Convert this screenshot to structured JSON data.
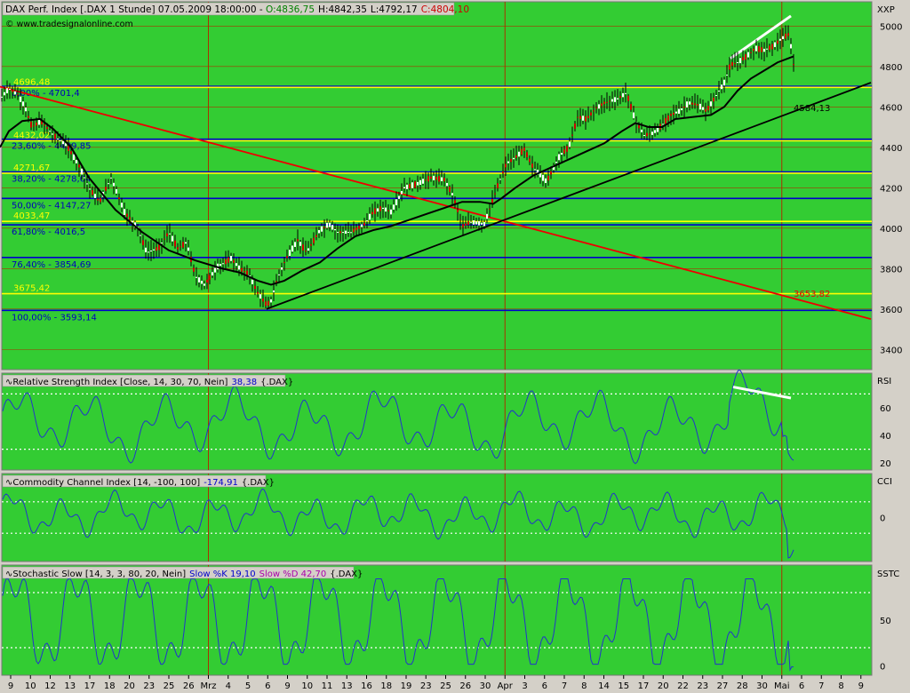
{
  "header": {
    "label": "DAX Perf. Index [.DAX  1 Stunde] 07.05.2009 18:00:00 - ",
    "open": "O:4836,75",
    "high": "H:4842,35",
    "low": "L:4792,17",
    "close": "C:4804,10",
    "copyright": "© www.tradesignalonline.com"
  },
  "colors": {
    "plot_bg": "#33cc33",
    "frame_bg": "#d4d0c8",
    "price": "#000000",
    "indicator": "#2233cc",
    "fib": "#0000cc",
    "support": "#ffff00",
    "trend_down": "#ee0000",
    "vgrid": "#aa3300",
    "close_text": "#cc0000",
    "open_text": "#008000"
  },
  "chart_data": [
    {
      "type": "candlestick",
      "axis_title": "XXP",
      "ylim": [
        3300,
        5120
      ],
      "yticks": [
        3400,
        3600,
        3800,
        4000,
        4200,
        4400,
        4600,
        4800,
        5000
      ],
      "xticks": [
        "9",
        "10",
        "12",
        "13",
        "17",
        "18",
        "20",
        "23",
        "25",
        "26",
        "Mrz",
        "4",
        "5",
        "6",
        "9",
        "10",
        "11",
        "13",
        "16",
        "18",
        "19",
        "23",
        "25",
        "26",
        "30",
        "Apr",
        "3",
        "6",
        "7",
        "8",
        "14",
        "15",
        "17",
        "20",
        "22",
        "23",
        "27",
        "28",
        "30",
        "Mai",
        "6",
        "7",
        "8",
        "9"
      ],
      "month_markers": [
        "Mrz",
        "Apr",
        "Mai"
      ],
      "moving_average": [
        [
          0,
          4400
        ],
        [
          10,
          4480
        ],
        [
          25,
          4530
        ],
        [
          45,
          4540
        ],
        [
          60,
          4490
        ],
        [
          80,
          4400
        ],
        [
          100,
          4250
        ],
        [
          130,
          4090
        ],
        [
          160,
          3980
        ],
        [
          190,
          3890
        ],
        [
          220,
          3840
        ],
        [
          250,
          3800
        ],
        [
          270,
          3780
        ],
        [
          290,
          3740
        ],
        [
          305,
          3720
        ],
        [
          320,
          3740
        ],
        [
          340,
          3790
        ],
        [
          360,
          3830
        ],
        [
          380,
          3900
        ],
        [
          400,
          3960
        ],
        [
          420,
          3990
        ],
        [
          440,
          4010
        ],
        [
          460,
          4040
        ],
        [
          480,
          4070
        ],
        [
          500,
          4100
        ],
        [
          520,
          4130
        ],
        [
          540,
          4130
        ],
        [
          555,
          4120
        ],
        [
          565,
          4150
        ],
        [
          580,
          4200
        ],
        [
          600,
          4260
        ],
        [
          620,
          4300
        ],
        [
          640,
          4340
        ],
        [
          660,
          4380
        ],
        [
          680,
          4420
        ],
        [
          700,
          4480
        ],
        [
          715,
          4520
        ],
        [
          730,
          4500
        ],
        [
          745,
          4500
        ],
        [
          760,
          4540
        ],
        [
          780,
          4550
        ],
        [
          800,
          4560
        ],
        [
          815,
          4600
        ],
        [
          830,
          4680
        ],
        [
          845,
          4740
        ],
        [
          860,
          4780
        ],
        [
          875,
          4820
        ],
        [
          893,
          4850
        ]
      ],
      "price_path": [
        [
          0,
          4640
        ],
        [
          10,
          4690
        ],
        [
          20,
          4660
        ],
        [
          28,
          4600
        ],
        [
          36,
          4500
        ],
        [
          46,
          4530
        ],
        [
          60,
          4460
        ],
        [
          75,
          4410
        ],
        [
          90,
          4300
        ],
        [
          100,
          4200
        ],
        [
          112,
          4130
        ],
        [
          125,
          4250
        ],
        [
          140,
          4080
        ],
        [
          155,
          4000
        ],
        [
          165,
          3880
        ],
        [
          178,
          3900
        ],
        [
          190,
          3980
        ],
        [
          200,
          3900
        ],
        [
          210,
          3930
        ],
        [
          220,
          3760
        ],
        [
          230,
          3720
        ],
        [
          245,
          3810
        ],
        [
          260,
          3850
        ],
        [
          270,
          3800
        ],
        [
          280,
          3770
        ],
        [
          290,
          3680
        ],
        [
          300,
          3620
        ],
        [
          305,
          3640
        ],
        [
          312,
          3750
        ],
        [
          322,
          3850
        ],
        [
          335,
          3940
        ],
        [
          345,
          3880
        ],
        [
          360,
          3990
        ],
        [
          370,
          4020
        ],
        [
          380,
          3980
        ],
        [
          395,
          3980
        ],
        [
          410,
          4020
        ],
        [
          420,
          4080
        ],
        [
          430,
          4100
        ],
        [
          440,
          4080
        ],
        [
          455,
          4200
        ],
        [
          470,
          4220
        ],
        [
          485,
          4250
        ],
        [
          500,
          4240
        ],
        [
          510,
          4160
        ],
        [
          520,
          4010
        ],
        [
          530,
          4030
        ],
        [
          545,
          4020
        ],
        [
          560,
          4210
        ],
        [
          570,
          4320
        ],
        [
          580,
          4350
        ],
        [
          590,
          4390
        ],
        [
          600,
          4300
        ],
        [
          615,
          4230
        ],
        [
          630,
          4360
        ],
        [
          640,
          4400
        ],
        [
          650,
          4550
        ],
        [
          660,
          4540
        ],
        [
          670,
          4590
        ],
        [
          680,
          4620
        ],
        [
          695,
          4640
        ],
        [
          705,
          4670
        ],
        [
          715,
          4530
        ],
        [
          725,
          4460
        ],
        [
          735,
          4470
        ],
        [
          745,
          4510
        ],
        [
          755,
          4560
        ],
        [
          765,
          4580
        ],
        [
          775,
          4620
        ],
        [
          785,
          4610
        ],
        [
          795,
          4580
        ],
        [
          805,
          4650
        ],
        [
          815,
          4720
        ],
        [
          822,
          4810
        ],
        [
          830,
          4820
        ],
        [
          840,
          4850
        ],
        [
          850,
          4890
        ],
        [
          860,
          4880
        ],
        [
          870,
          4900
        ],
        [
          880,
          4940
        ],
        [
          888,
          4960
        ],
        [
          893,
          4810
        ]
      ],
      "fib_levels": [
        {
          "label": "0,00% - 4701,4",
          "value": 4701.4
        },
        {
          "label": "23,60% - 4439,85",
          "value": 4439.85
        },
        {
          "label": "38,20% - 4278,04",
          "value": 4278.04
        },
        {
          "label": "50,00% - 4147,27",
          "value": 4147.27
        },
        {
          "label": "61,80% - 4016,5",
          "value": 4016.5
        },
        {
          "label": "76,40% - 3854,69",
          "value": 3854.69
        },
        {
          "label": "100,00% - 3593,14",
          "value": 3593.14
        }
      ],
      "support_levels": [
        {
          "label": "4696,48",
          "value": 4696.48
        },
        {
          "label": "4432,02",
          "value": 4432.02
        },
        {
          "label": "4271,67",
          "value": 4271.67
        },
        {
          "label": "4033,47",
          "value": 4033.47
        },
        {
          "label": "3675,42",
          "value": 3675.42
        }
      ],
      "trendlines": [
        {
          "label": "",
          "from": [
            0,
            4700
          ],
          "to": [
            980,
            3550
          ],
          "color": "#ee0000"
        },
        {
          "label": "4584,13",
          "from": [
            300,
            3600
          ],
          "to": [
            980,
            4720
          ],
          "color": "#000000"
        },
        {
          "label": "",
          "from": [
            822,
            4840
          ],
          "to": [
            890,
            5050
          ],
          "color": "#ffffff"
        }
      ],
      "annotations": [
        {
          "text": "4584,13",
          "x": 893,
          "y": 4580
        },
        {
          "text": "3653,82",
          "x": 893,
          "y": 3660
        }
      ]
    },
    {
      "type": "line",
      "axis_title": "RSI",
      "legend": "Relative Strength Index [Close, 14, 30, 70, Nein]",
      "legend_value": "38,38",
      "legend_symbol": "{.DAX}",
      "ylim": [
        15,
        85
      ],
      "yticks": [
        20,
        40,
        60
      ],
      "guides": [
        70,
        30
      ],
      "trendline": {
        "from": [
          825,
          75
        ],
        "to": [
          890,
          67
        ]
      }
    },
    {
      "type": "line",
      "axis_title": "CCI",
      "legend": "Commodity Channel Index [14, -100, 100]",
      "legend_value": "-174,91",
      "legend_symbol": "{.DAX}",
      "ylim": [
        -280,
        280
      ],
      "yticks": [
        0
      ],
      "guides": [
        100,
        -100
      ]
    },
    {
      "type": "line",
      "axis_title": "SSTC",
      "legend": "Stochastic Slow [14, 3, 3, 80, 20, Nein]",
      "legend_k": "Slow %K 19,10",
      "legend_d": "Slow %D 42,70",
      "legend_symbol": "{.DAX}",
      "ylim": [
        -10,
        110
      ],
      "yticks": [
        0,
        50
      ],
      "guides": [
        80,
        20
      ]
    }
  ]
}
